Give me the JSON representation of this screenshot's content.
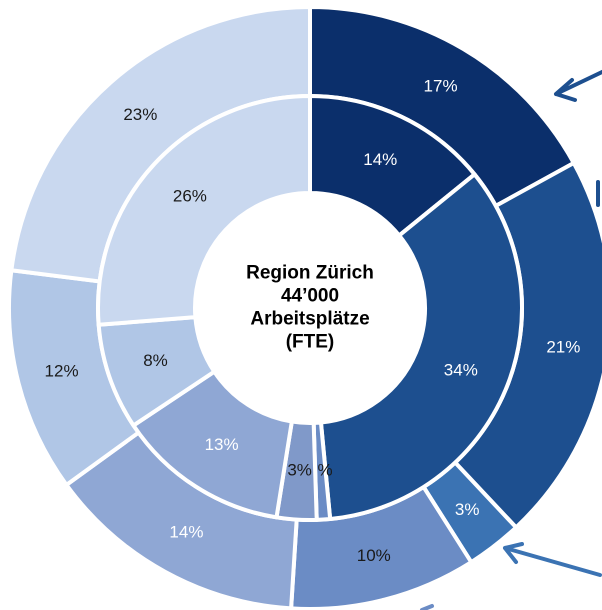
{
  "chart_data": {
    "type": "donut",
    "center_lines": [
      "Region Zürich",
      "44’000",
      "Arbeitsplätze",
      "(FTE)"
    ],
    "rings": [
      {
        "values": [
          17,
          21,
          3,
          10,
          14,
          12,
          23
        ],
        "value_labels": [
          "17%",
          "21%",
          "3%",
          "10%",
          "14%",
          "12%",
          "23%"
        ],
        "colors": [
          "#0b2f6b",
          "#1d4f8f",
          "#3b73b3",
          "#6b8cc5",
          "#8fa7d4",
          "#b0c6e6",
          "#c9d8ef"
        ],
        "label_colors": [
          "#ffffff",
          "#ffffff",
          "#ffffff",
          "#1a1a1a",
          "#ffffff",
          "#1a1a1a",
          "#1a1a1a"
        ]
      },
      {
        "values": [
          14,
          34,
          1,
          3,
          13,
          8,
          26
        ],
        "value_labels": [
          "14%",
          "34%",
          "1%",
          "3%",
          "13%",
          "8%",
          "26%"
        ],
        "colors": [
          "#0b2f6b",
          "#1d4f8f",
          "#6b8cc5",
          "#8099c9",
          "#8fa7d4",
          "#b0c6e6",
          "#c9d8ef"
        ],
        "label_colors": [
          "#ffffff",
          "#ffffff",
          "#1a1a1a",
          "#1a1a1a",
          "#ffffff",
          "#1a1a1a",
          "#1a1a1a"
        ]
      }
    ]
  }
}
